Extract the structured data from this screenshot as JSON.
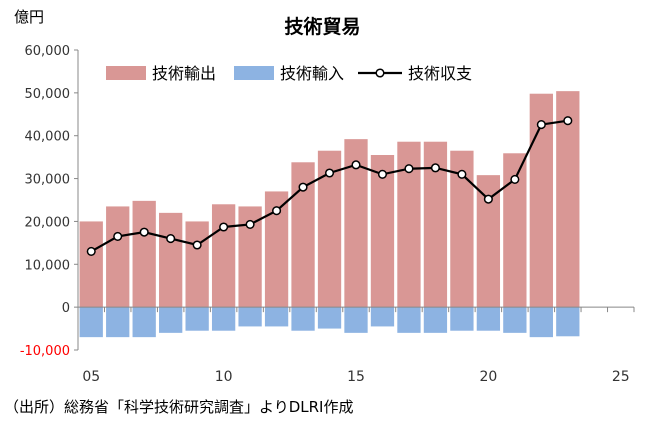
{
  "chart_data": {
    "type": "bar",
    "title": "技術貿易",
    "ylabel": "億円",
    "source": "（出所）総務省「科学技術研究調査」よりDLRI作成",
    "ylim": [
      -10000,
      60000
    ],
    "yticks": [
      -10000,
      0,
      10000,
      20000,
      30000,
      40000,
      50000,
      60000
    ],
    "ytick_labels": [
      "-10,000",
      "0",
      "10,000",
      "20,000",
      "30,000",
      "40,000",
      "50,000",
      "60,000"
    ],
    "xlim": [
      4.5,
      25.5
    ],
    "xticks": [
      5,
      10,
      15,
      20,
      25
    ],
    "xtick_labels": [
      "05",
      "10",
      "15",
      "20",
      "25"
    ],
    "x": [
      5,
      6,
      7,
      8,
      9,
      10,
      11,
      12,
      13,
      14,
      15,
      16,
      17,
      18,
      19,
      20,
      21,
      22,
      23
    ],
    "legend_position": "top",
    "series": [
      {
        "name": "技術輸出",
        "kind": "bar",
        "color": "#D99795",
        "values": [
          20000,
          23500,
          24800,
          22000,
          20000,
          24000,
          23500,
          27000,
          33800,
          36500,
          39200,
          35500,
          38600,
          38600,
          36500,
          30800,
          35900,
          49800,
          50400
        ]
      },
      {
        "name": "技術輸入",
        "kind": "bar",
        "color": "#8DB3E2",
        "values": [
          -7000,
          -7000,
          -7000,
          -6000,
          -5500,
          -5500,
          -4500,
          -4500,
          -5500,
          -5000,
          -6000,
          -4500,
          -6000,
          -6000,
          -5500,
          -5500,
          -6000,
          -7000,
          -6800
        ]
      },
      {
        "name": "技術収支",
        "kind": "line",
        "color": "#000000",
        "values": [
          13000,
          16500,
          17500,
          16000,
          14500,
          18700,
          19300,
          22500,
          28000,
          31300,
          33200,
          31000,
          32300,
          32500,
          31000,
          25200,
          29800,
          42600,
          43500
        ]
      }
    ]
  }
}
